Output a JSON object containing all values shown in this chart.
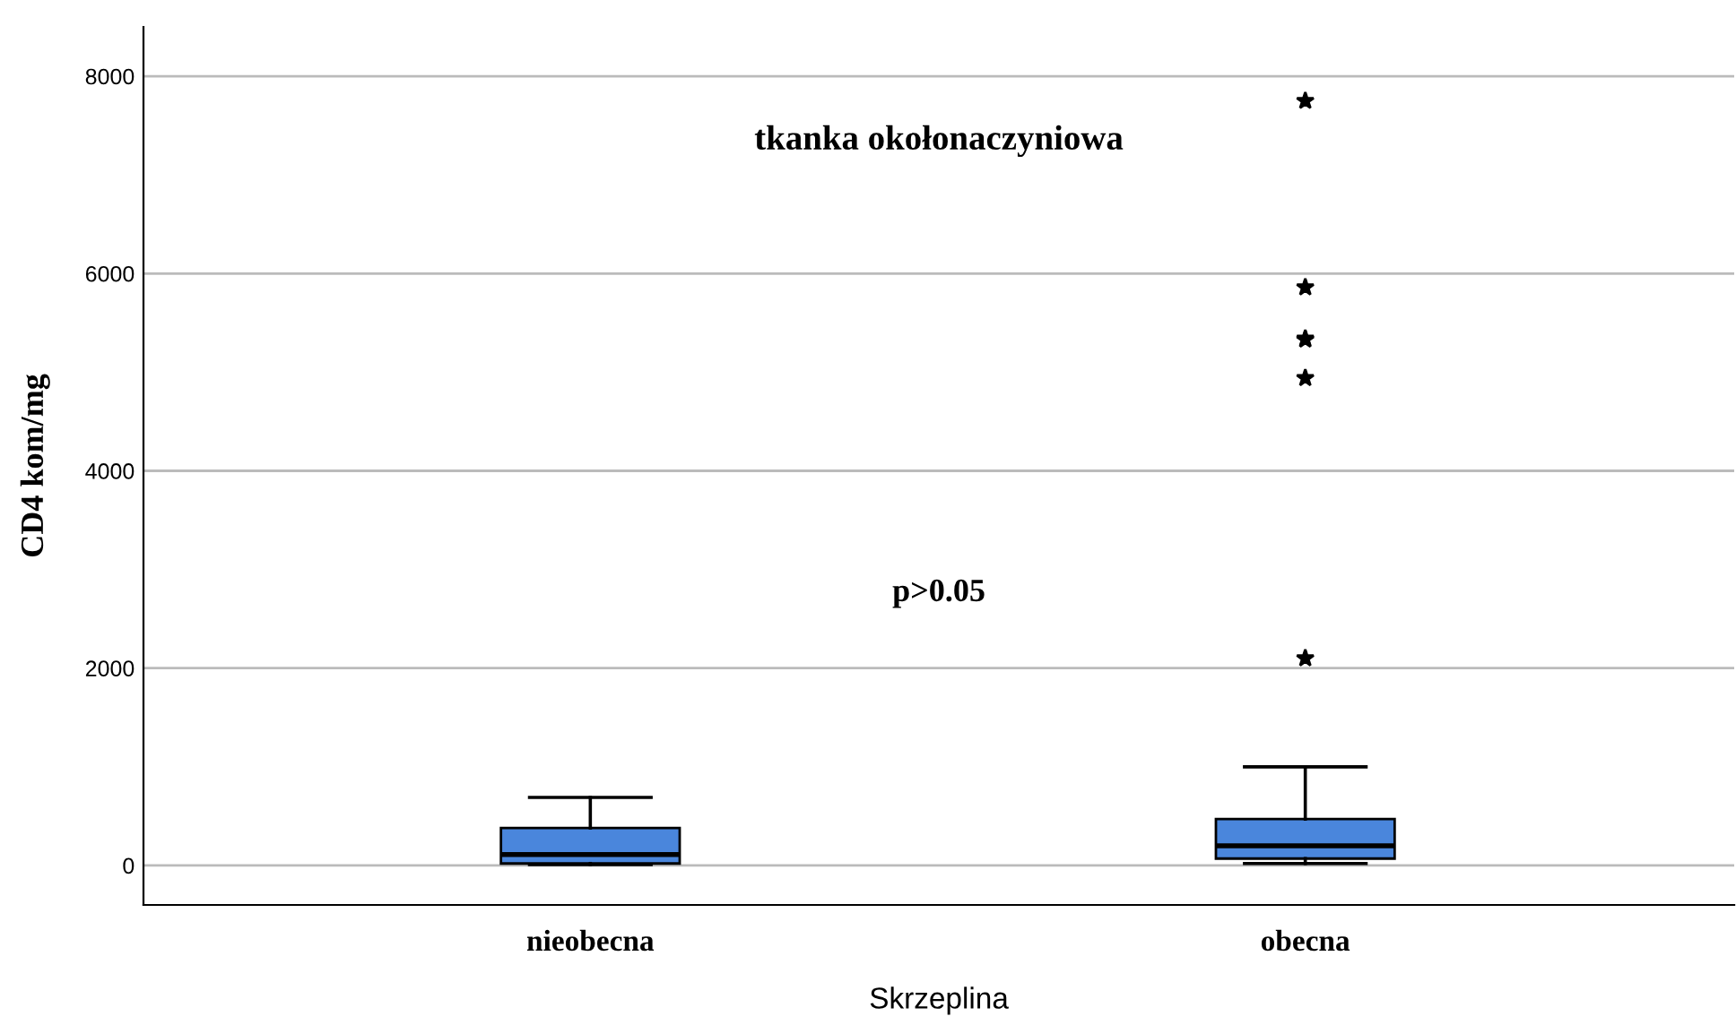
{
  "chart_data": {
    "type": "box",
    "xlabel": "Skrzeplina",
    "ylabel": "CD4 kom/mg",
    "categories": [
      "nieobecna",
      "obecna"
    ],
    "boxes": [
      {
        "low": 10,
        "q1": 20,
        "median": 110,
        "q3": 380,
        "high": 690
      },
      {
        "low": 20,
        "q1": 70,
        "median": 200,
        "q3": 470,
        "high": 1000,
        "outliers": [
          2100,
          4940,
          5330,
          5340,
          5860,
          7750
        ]
      }
    ],
    "color": "#4a86dc",
    "annotations": [
      "tkanka okołonaczyniowa",
      "p>0.05"
    ],
    "ylim": [
      -400,
      8500
    ],
    "yticks": [
      0,
      2000,
      4000,
      6000,
      8000
    ],
    "grid": "y",
    "marker": "star"
  }
}
